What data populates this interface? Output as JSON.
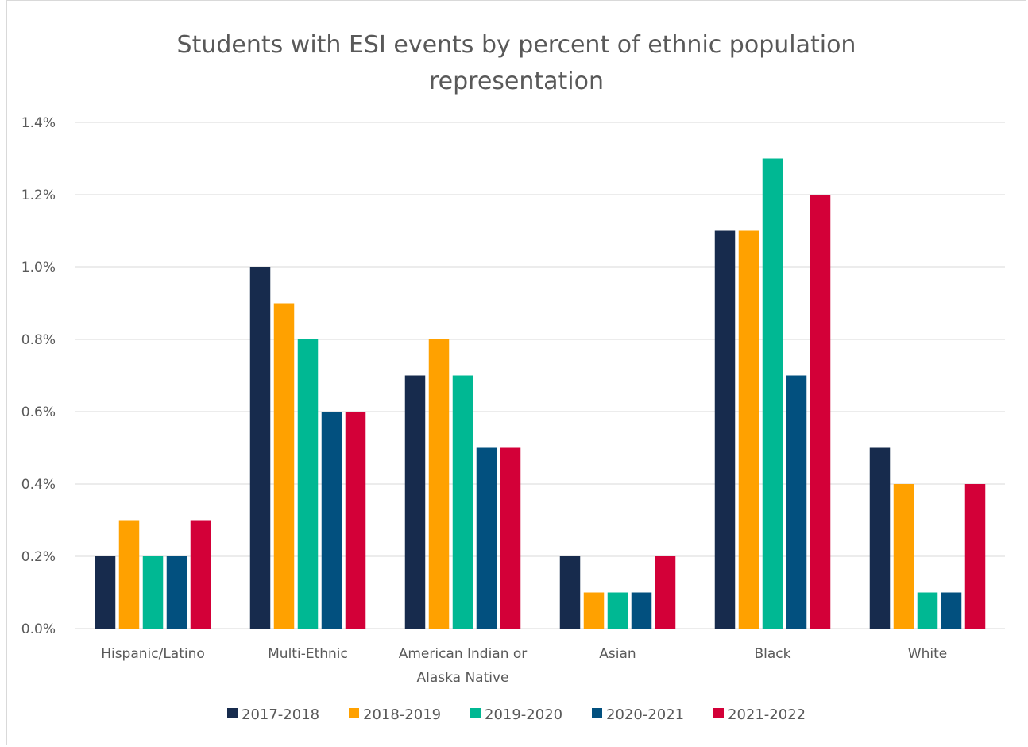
{
  "chart_data": {
    "type": "bar",
    "title_lines": [
      "Students with ESI events by percent of ethnic population",
      "representation"
    ],
    "xlabel": "",
    "ylabel": "",
    "categories": [
      [
        "Hispanic/Latino"
      ],
      [
        "Multi-Ethnic"
      ],
      [
        "American Indian or",
        "Alaska Native"
      ],
      [
        "Asian"
      ],
      [
        "Black"
      ],
      [
        "White"
      ]
    ],
    "y_ticks": [
      "0.0%",
      "0.2%",
      "0.4%",
      "0.6%",
      "0.8%",
      "1.0%",
      "1.2%",
      "1.4%"
    ],
    "ylim": [
      0,
      1.4
    ],
    "grid": true,
    "legend_position": "bottom",
    "series": [
      {
        "name": "2017-2018",
        "color": "#172b4d",
        "values": [
          0.2,
          1.0,
          0.7,
          0.2,
          1.1,
          0.5
        ]
      },
      {
        "name": "2018-2019",
        "color": "#ffa100",
        "values": [
          0.3,
          0.9,
          0.8,
          0.1,
          1.1,
          0.4
        ]
      },
      {
        "name": "2019-2020",
        "color": "#00b893",
        "values": [
          0.2,
          0.8,
          0.7,
          0.1,
          1.3,
          0.1
        ]
      },
      {
        "name": "2020-2021",
        "color": "#02507f",
        "values": [
          0.2,
          0.6,
          0.5,
          0.1,
          0.7,
          0.1
        ]
      },
      {
        "name": "2021-2022",
        "color": "#d30038",
        "values": [
          0.3,
          0.6,
          0.5,
          0.2,
          1.2,
          0.4
        ]
      }
    ]
  }
}
